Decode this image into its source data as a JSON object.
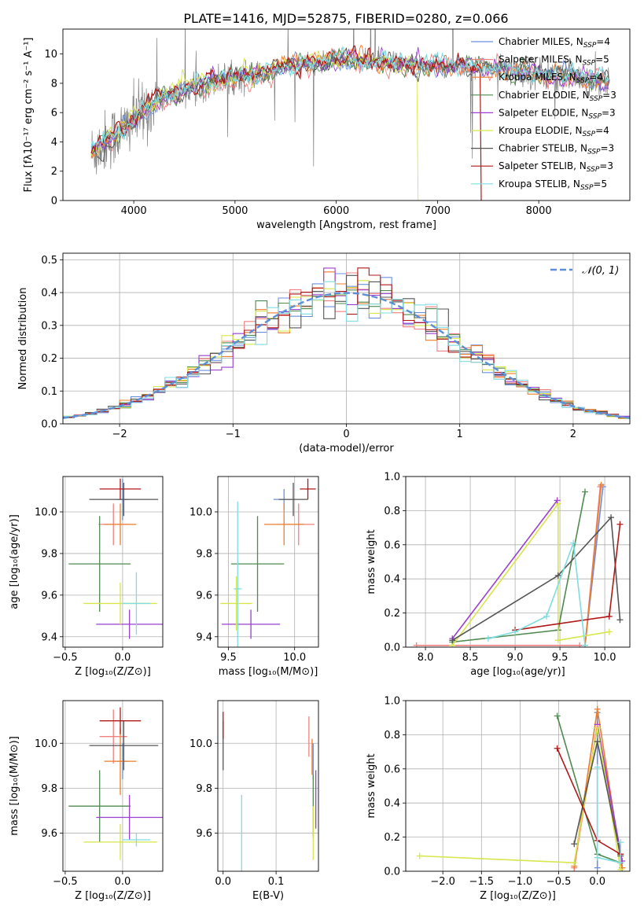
{
  "figure_title": "PLATE=1416, MJD=52875, FIBERID=0280, z=0.066",
  "model_colors": {
    "Chabrier MILES": "#6a8fe0",
    "Salpeter MILES": "#f08080",
    "Kroupa MILES": "#ee7d2a",
    "Chabrier ELODIE": "#4f8a4f",
    "Salpeter ELODIE": "#9b3fd0",
    "Kroupa ELODIE": "#d7e64a",
    "Chabrier STELIB": "#555555",
    "Salpeter STELIB": "#b01818",
    "Kroupa STELIB": "#7fdce0"
  },
  "chart_data": [
    {
      "id": "spectrum",
      "type": "line",
      "title": "PLATE=1416, MJD=52875, FIBERID=0280, z=0.066",
      "xlabel": "wavelength [Angstrom, rest frame]",
      "ylabel": "Flux [fλ10⁻¹⁷ erg cm⁻² s⁻¹ A⁻¹]",
      "xlim": [
        3300,
        8900
      ],
      "ylim": [
        0,
        11.7
      ],
      "xticks": [
        4000,
        5000,
        6000,
        7000,
        8000
      ],
      "yticks": [
        0,
        2,
        4,
        6,
        8,
        10
      ],
      "legend_placement": "top-right",
      "legend": [
        {
          "model": "Chabrier MILES",
          "nssp": "4"
        },
        {
          "model": "Salpeter MILES",
          "nssp": "5"
        },
        {
          "model": "Kroupa MILES",
          "nssp": "4"
        },
        {
          "model": "Chabrier ELODIE",
          "nssp": "3"
        },
        {
          "model": "Salpeter ELODIE",
          "nssp": "3"
        },
        {
          "model": "Kroupa ELODIE",
          "nssp": "4"
        },
        {
          "model": "Chabrier STELIB",
          "nssp": "3"
        },
        {
          "model": "Salpeter STELIB",
          "nssp": "3"
        },
        {
          "model": "Kroupa STELIB",
          "nssp": "5"
        }
      ],
      "data_continuum": [
        [
          3580,
          3.2
        ],
        [
          3650,
          3.6
        ],
        [
          3750,
          4.2
        ],
        [
          3850,
          4.6
        ],
        [
          3950,
          5.2
        ],
        [
          4050,
          5.8
        ],
        [
          4150,
          6.4
        ],
        [
          4250,
          6.9
        ],
        [
          4400,
          7.3
        ],
        [
          4600,
          7.8
        ],
        [
          4800,
          8.2
        ],
        [
          5000,
          8.4
        ],
        [
          5200,
          8.6
        ],
        [
          5400,
          8.9
        ],
        [
          5600,
          9.2
        ],
        [
          5800,
          9.4
        ],
        [
          6000,
          9.6
        ],
        [
          6200,
          9.6
        ],
        [
          6400,
          9.5
        ],
        [
          6600,
          9.4
        ],
        [
          6800,
          9.3
        ],
        [
          7000,
          9.3
        ],
        [
          7200,
          9.2
        ],
        [
          7400,
          9.1
        ],
        [
          7600,
          9.0
        ],
        [
          7800,
          8.8
        ],
        [
          8000,
          8.7
        ],
        [
          8200,
          8.5
        ],
        [
          8400,
          8.4
        ],
        [
          8700,
          8.2
        ]
      ],
      "model_cutoffs_angstrom": {
        "Kroupa ELODIE": 6800,
        "Salpeter STELIB": 7420
      }
    },
    {
      "id": "residuals",
      "type": "bar",
      "xlabel": "(data-model)/error",
      "ylabel": "Normed distribution",
      "xlim": [
        -2.5,
        2.5
      ],
      "ylim": [
        0,
        0.52
      ],
      "xticks": [
        -2,
        -1,
        0,
        1,
        2
      ],
      "yticks": [
        0.0,
        0.1,
        0.2,
        0.3,
        0.4,
        0.5
      ],
      "legend_placement": "top-right",
      "reference_curve_label": "𝒩(0, 1)",
      "bin_width": 0.1,
      "histogram_style": "step"
    },
    {
      "id": "age_vs_Z",
      "type": "scatter",
      "xlabel": "Z [log₁₀(Z/Z⊙)]",
      "ylabel": "age  [log₁₀(age/yr)]",
      "xlim": [
        -0.52,
        0.35
      ],
      "ylim": [
        9.35,
        10.17
      ],
      "xticks": [
        -0.5,
        0.0
      ],
      "yticks": [
        9.4,
        9.6,
        9.8,
        10.0
      ],
      "points": [
        {
          "model": "Chabrier MILES",
          "x": 0.0,
          "y": 10.06,
          "xerr": 0.05,
          "yerr": 0.1
        },
        {
          "model": "Salpeter MILES",
          "x": -0.08,
          "y": 9.94,
          "xerr": 0.13,
          "yerr": 0.1
        },
        {
          "model": "Kroupa MILES",
          "x": -0.02,
          "y": 9.94,
          "xerr": 0.14,
          "yerr": 0.1
        },
        {
          "model": "Chabrier ELODIE",
          "x": -0.2,
          "y": 9.75,
          "xerr": 0.27,
          "yerr": 0.23
        },
        {
          "model": "Salpeter ELODIE",
          "x": 0.06,
          "y": 9.46,
          "xerr": 0.29,
          "yerr": 0.07
        },
        {
          "model": "Kroupa ELODIE",
          "x": -0.02,
          "y": 9.56,
          "xerr": 0.32,
          "yerr": 0.1
        },
        {
          "model": "Chabrier STELIB",
          "x": 0.01,
          "y": 10.06,
          "xerr": 0.3,
          "yerr": 0.08
        },
        {
          "model": "Salpeter STELIB",
          "x": -0.02,
          "y": 10.11,
          "xerr": 0.18,
          "yerr": 0.05
        },
        {
          "model": "Kroupa STELIB",
          "x": 0.12,
          "y": 9.56,
          "xerr": 0.12,
          "yerr": 0.15
        }
      ]
    },
    {
      "id": "age_vs_mass",
      "type": "scatter",
      "xlabel": "mass [log₁₀(M/M⊙)]",
      "ylabel": "",
      "xlim": [
        9.42,
        10.18
      ],
      "ylim": [
        9.35,
        10.17
      ],
      "xticks": [
        9.5,
        10.0
      ],
      "yticks": [
        9.4,
        9.6,
        9.8,
        10.0
      ],
      "points": [
        {
          "model": "Chabrier MILES",
          "x": 9.92,
          "y": 10.06,
          "xerr": 0.08,
          "yerr": 0.05
        },
        {
          "model": "Salpeter MILES",
          "x": 10.03,
          "y": 9.94,
          "xerr": 0.12,
          "yerr": 0.1
        },
        {
          "model": "Kroupa MILES",
          "x": 9.92,
          "y": 9.94,
          "xerr": 0.15,
          "yerr": 0.1
        },
        {
          "model": "Chabrier ELODIE",
          "x": 9.72,
          "y": 9.75,
          "xerr": 0.2,
          "yerr": 0.23
        },
        {
          "model": "Salpeter ELODIE",
          "x": 9.67,
          "y": 9.46,
          "xerr": 0.22,
          "yerr": 0.07
        },
        {
          "model": "Kroupa ELODIE",
          "x": 9.56,
          "y": 9.56,
          "xerr": 0.12,
          "yerr": 0.13
        },
        {
          "model": "Chabrier STELIB",
          "x": 9.99,
          "y": 10.06,
          "xerr": 0.11,
          "yerr": 0.08
        },
        {
          "model": "Salpeter STELIB",
          "x": 10.1,
          "y": 10.11,
          "xerr": 0.06,
          "yerr": 0.05
        },
        {
          "model": "Kroupa STELIB",
          "x": 9.57,
          "y": 9.63,
          "xerr": 0.03,
          "yerr": 0.42
        }
      ]
    },
    {
      "id": "mass_weight_vs_age",
      "type": "line",
      "xlabel": "age  [log₁₀(age/yr)]",
      "ylabel": "mass weight",
      "xlim": [
        7.78,
        10.28
      ],
      "ylim": [
        0,
        1.0
      ],
      "xticks": [
        8.0,
        8.5,
        9.0,
        9.5,
        10.0
      ],
      "yticks": [
        0.0,
        0.2,
        0.4,
        0.6,
        0.8,
        1.0
      ],
      "series": [
        {
          "model": "Chabrier MILES",
          "points": [
            [
              9.78,
              0.01
            ],
            [
              9.98,
              0.94
            ]
          ]
        },
        {
          "model": "Salpeter MILES",
          "points": [
            [
              7.9,
              0.01
            ],
            [
              9.72,
              0.01
            ],
            [
              9.78,
              0.01
            ],
            [
              9.95,
              0.94
            ]
          ]
        },
        {
          "model": "Kroupa MILES",
          "points": [
            [
              9.78,
              0.01
            ],
            [
              9.96,
              0.95
            ]
          ]
        },
        {
          "model": "Chabrier ELODIE",
          "points": [
            [
              8.3,
              0.03
            ],
            [
              9.48,
              0.1
            ],
            [
              9.78,
              0.91
            ]
          ]
        },
        {
          "model": "Salpeter ELODIE",
          "points": [
            [
              8.3,
              0.05
            ],
            [
              9.47,
              0.86
            ]
          ]
        },
        {
          "model": "Kroupa ELODIE",
          "points": [
            [
              8.3,
              0.01
            ],
            [
              9.48,
              0.84
            ],
            [
              9.48,
              0.04
            ],
            [
              10.05,
              0.09
            ]
          ]
        },
        {
          "model": "Chabrier STELIB",
          "points": [
            [
              8.3,
              0.04
            ],
            [
              9.48,
              0.42
            ],
            [
              10.07,
              0.76
            ],
            [
              10.17,
              0.16
            ]
          ]
        },
        {
          "model": "Salpeter STELIB",
          "points": [
            [
              9.0,
              0.1
            ],
            [
              10.05,
              0.18
            ],
            [
              10.17,
              0.72
            ]
          ]
        },
        {
          "model": "Kroupa STELIB",
          "points": [
            [
              8.7,
              0.05
            ],
            [
              9.0,
              0.09
            ],
            [
              9.35,
              0.18
            ],
            [
              9.65,
              0.61
            ],
            [
              9.78,
              0.01
            ]
          ]
        }
      ]
    },
    {
      "id": "mass_vs_Z",
      "type": "scatter",
      "xlabel": "Z [log₁₀(Z/Z⊙)]",
      "ylabel": "mass [log₁₀(M/M⊙)]",
      "xlim": [
        -0.52,
        0.35
      ],
      "ylim": [
        9.43,
        10.19
      ],
      "xticks": [
        -0.5,
        0.0
      ],
      "yticks": [
        9.6,
        9.8,
        10.0
      ],
      "points": [
        {
          "model": "Chabrier MILES",
          "x": 0.0,
          "y": 9.92,
          "xerr": 0.05,
          "yerr": 0.08
        },
        {
          "model": "Salpeter MILES",
          "x": -0.08,
          "y": 10.03,
          "xerr": 0.12,
          "yerr": 0.12
        },
        {
          "model": "Kroupa MILES",
          "x": -0.02,
          "y": 9.92,
          "xerr": 0.14,
          "yerr": 0.15
        },
        {
          "model": "Chabrier ELODIE",
          "x": -0.2,
          "y": 9.72,
          "xerr": 0.27,
          "yerr": 0.16
        },
        {
          "model": "Salpeter ELODIE",
          "x": 0.06,
          "y": 9.67,
          "xerr": 0.29,
          "yerr": 0.1
        },
        {
          "model": "Kroupa ELODIE",
          "x": -0.02,
          "y": 9.56,
          "xerr": 0.32,
          "yerr": 0.08
        },
        {
          "model": "Chabrier STELIB",
          "x": 0.01,
          "y": 9.99,
          "xerr": 0.3,
          "yerr": 0.11
        },
        {
          "model": "Salpeter STELIB",
          "x": -0.02,
          "y": 10.1,
          "xerr": 0.18,
          "yerr": 0.06
        },
        {
          "model": "Kroupa STELIB",
          "x": 0.12,
          "y": 9.57,
          "xerr": 0.12,
          "yerr": 0.03
        }
      ]
    },
    {
      "id": "mass_vs_ebv",
      "type": "scatter",
      "xlabel": "E(B-V)",
      "ylabel": "",
      "xlim": [
        -0.01,
        0.18
      ],
      "ylim": [
        9.43,
        10.19
      ],
      "xticks": [
        0.0,
        0.1
      ],
      "yticks": [
        9.6,
        9.8,
        10.0
      ],
      "points": [
        {
          "model": "Chabrier MILES",
          "x": 0.17,
          "y": 9.92,
          "xerr": 0.0,
          "yerr": 0.08
        },
        {
          "model": "Salpeter MILES",
          "x": 0.162,
          "y": 10.03,
          "xerr": 0.0,
          "yerr": 0.09
        },
        {
          "model": "Kroupa MILES",
          "x": 0.168,
          "y": 9.94,
          "xerr": 0.0,
          "yerr": 0.08
        },
        {
          "model": "Chabrier ELODIE",
          "x": 0.17,
          "y": 9.72,
          "xerr": 0.0,
          "yerr": 0.14
        },
        {
          "model": "Salpeter ELODIE",
          "x": 0.175,
          "y": 9.75,
          "xerr": 0.0,
          "yerr": 0.13
        },
        {
          "model": "Kroupa ELODIE",
          "x": 0.17,
          "y": 9.6,
          "xerr": 0.0,
          "yerr": 0.12
        },
        {
          "model": "Chabrier STELIB",
          "x": 0.0,
          "y": 9.99,
          "xerr": 0.0,
          "yerr": 0.11
        },
        {
          "model": "Salpeter STELIB",
          "x": 0.0,
          "y": 10.08,
          "xerr": 0.0,
          "yerr": 0.06
        },
        {
          "model": "Kroupa STELIB",
          "x": 0.035,
          "y": 9.6,
          "xerr": 0.0,
          "yerr": 0.17
        }
      ]
    },
    {
      "id": "mass_weight_vs_Z",
      "type": "line",
      "xlabel": "Z [log₁₀(Z/Z⊙)]",
      "ylabel": "mass weight",
      "xlim": [
        -2.48,
        0.42
      ],
      "ylim": [
        0,
        1.0
      ],
      "xticks": [
        -2.0,
        -1.5,
        -1.0,
        -0.5,
        0.0
      ],
      "yticks": [
        0.0,
        0.2,
        0.4,
        0.6,
        0.8,
        1.0
      ],
      "series": [
        {
          "model": "Chabrier MILES",
          "points": [
            [
              0.0,
              0.02
            ],
            [
              0.0,
              0.93
            ]
          ]
        },
        {
          "model": "Salpeter MILES",
          "points": [
            [
              -0.3,
              0.02
            ],
            [
              0.0,
              0.86
            ],
            [
              0.32,
              0.02
            ]
          ]
        },
        {
          "model": "Kroupa MILES",
          "points": [
            [
              -0.3,
              0.03
            ],
            [
              0.0,
              0.95
            ],
            [
              0.32,
              0.02
            ]
          ]
        },
        {
          "model": "Chabrier ELODIE",
          "points": [
            [
              -0.52,
              0.91
            ],
            [
              0.0,
              0.1
            ],
            [
              0.3,
              0.05
            ]
          ]
        },
        {
          "model": "Salpeter ELODIE",
          "points": [
            [
              0.0,
              0.86
            ],
            [
              0.32,
              0.06
            ]
          ]
        },
        {
          "model": "Kroupa ELODIE",
          "points": [
            [
              -2.3,
              0.09
            ],
            [
              -0.3,
              0.05
            ],
            [
              0.0,
              0.84
            ],
            [
              0.3,
              0.01
            ]
          ]
        },
        {
          "model": "Chabrier STELIB",
          "points": [
            [
              -0.3,
              0.16
            ],
            [
              0.0,
              0.76
            ],
            [
              0.3,
              0.09
            ]
          ]
        },
        {
          "model": "Salpeter STELIB",
          "points": [
            [
              -0.52,
              0.72
            ],
            [
              0.0,
              0.18
            ],
            [
              0.3,
              0.1
            ]
          ]
        },
        {
          "model": "Kroupa STELIB",
          "points": [
            [
              0.0,
              0.61
            ],
            [
              0.0,
              0.08
            ],
            [
              0.3,
              0.05
            ],
            [
              0.3,
              0.17
            ]
          ]
        }
      ]
    }
  ]
}
